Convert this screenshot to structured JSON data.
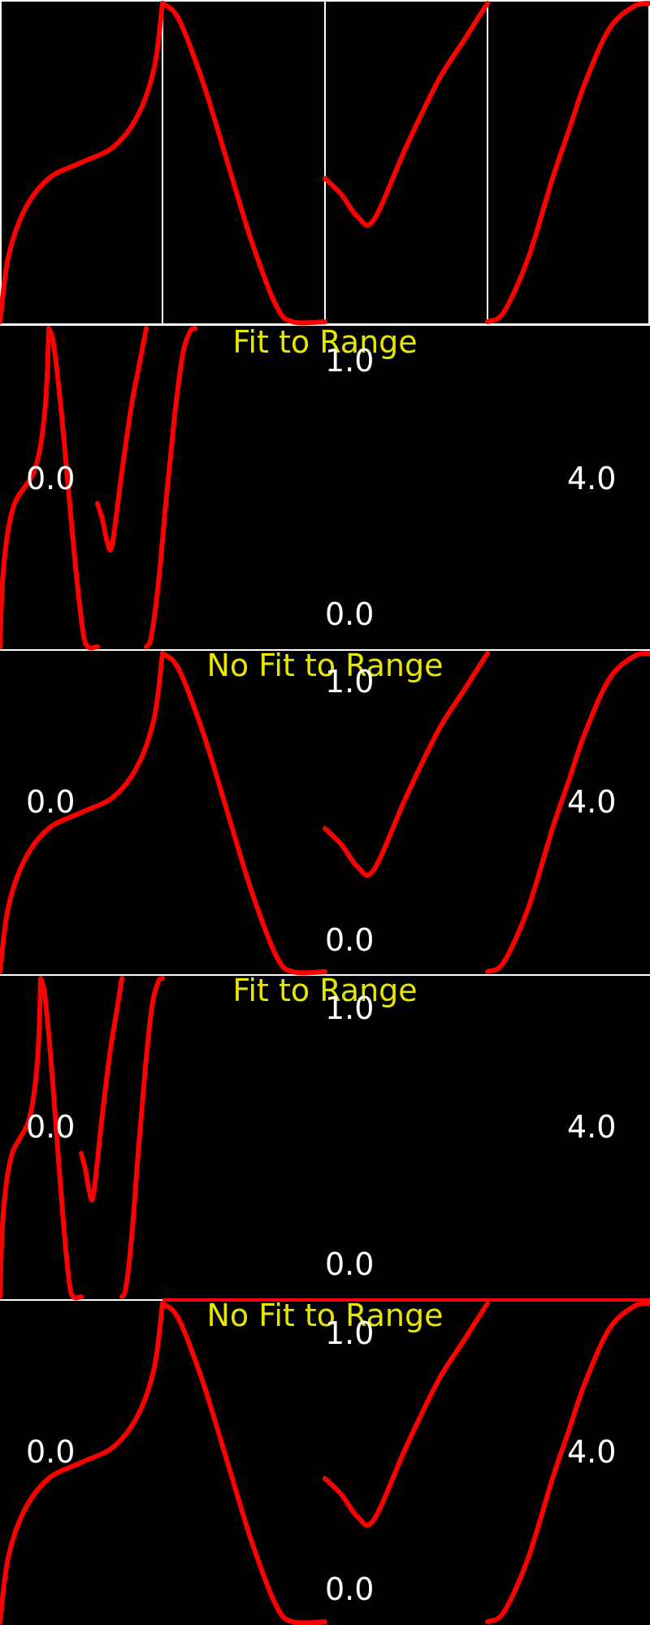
{
  "colors": {
    "background": "#000000",
    "curve": "#ff0000",
    "grid_line": "#ffffff",
    "label": "#e6e600",
    "axis_text": "#ffffff"
  },
  "panels": [
    {
      "label": "",
      "axis_labels": null
    },
    {
      "label": "Fit to Range",
      "axis_labels": {
        "top": "1.0",
        "bottom": "0.0",
        "left": "0.0",
        "right": "4.0"
      }
    },
    {
      "label": "No Fit to Range",
      "axis_labels": {
        "top": "1.0",
        "bottom": "0.0",
        "left": "0.0",
        "right": "4.0"
      }
    },
    {
      "label": "Fit to Range",
      "axis_labels": {
        "top": "1.0",
        "bottom": "0.0",
        "left": "0.0",
        "right": "4.0"
      }
    },
    {
      "label": "No Fit to Range",
      "axis_labels": {
        "top": "1.0",
        "bottom": "0.0",
        "left": "0.0",
        "right": "4.0"
      }
    }
  ],
  "chart_data": {
    "type": "line",
    "xlim": [
      0,
      4
    ],
    "ylim": [
      0,
      1
    ],
    "curves": [
      {
        "x": [
          0,
          0.05,
          0.15,
          0.3,
          0.5,
          0.7,
          0.85,
          0.95,
          1.0
        ],
        "y": [
          0,
          0.2,
          0.35,
          0.45,
          0.5,
          0.55,
          0.65,
          0.8,
          1.0
        ]
      },
      {
        "x": [
          1.0,
          1.1,
          1.25,
          1.4,
          1.55,
          1.7,
          1.8,
          2.0
        ],
        "y": [
          1.0,
          0.95,
          0.75,
          0.5,
          0.25,
          0.05,
          0.0,
          0.0
        ]
      },
      {
        "x": [
          2.0,
          2.1,
          2.2,
          2.3,
          2.5,
          2.7,
          2.85,
          3.0
        ],
        "y": [
          0.45,
          0.4,
          0.33,
          0.32,
          0.55,
          0.76,
          0.88,
          1.0
        ]
      },
      {
        "x": [
          3.0,
          3.1,
          3.25,
          3.4,
          3.5,
          3.6,
          3.75,
          3.9,
          4.0
        ],
        "y": [
          0.0,
          0.03,
          0.2,
          0.45,
          0.6,
          0.75,
          0.92,
          0.99,
          1.0
        ]
      }
    ]
  }
}
